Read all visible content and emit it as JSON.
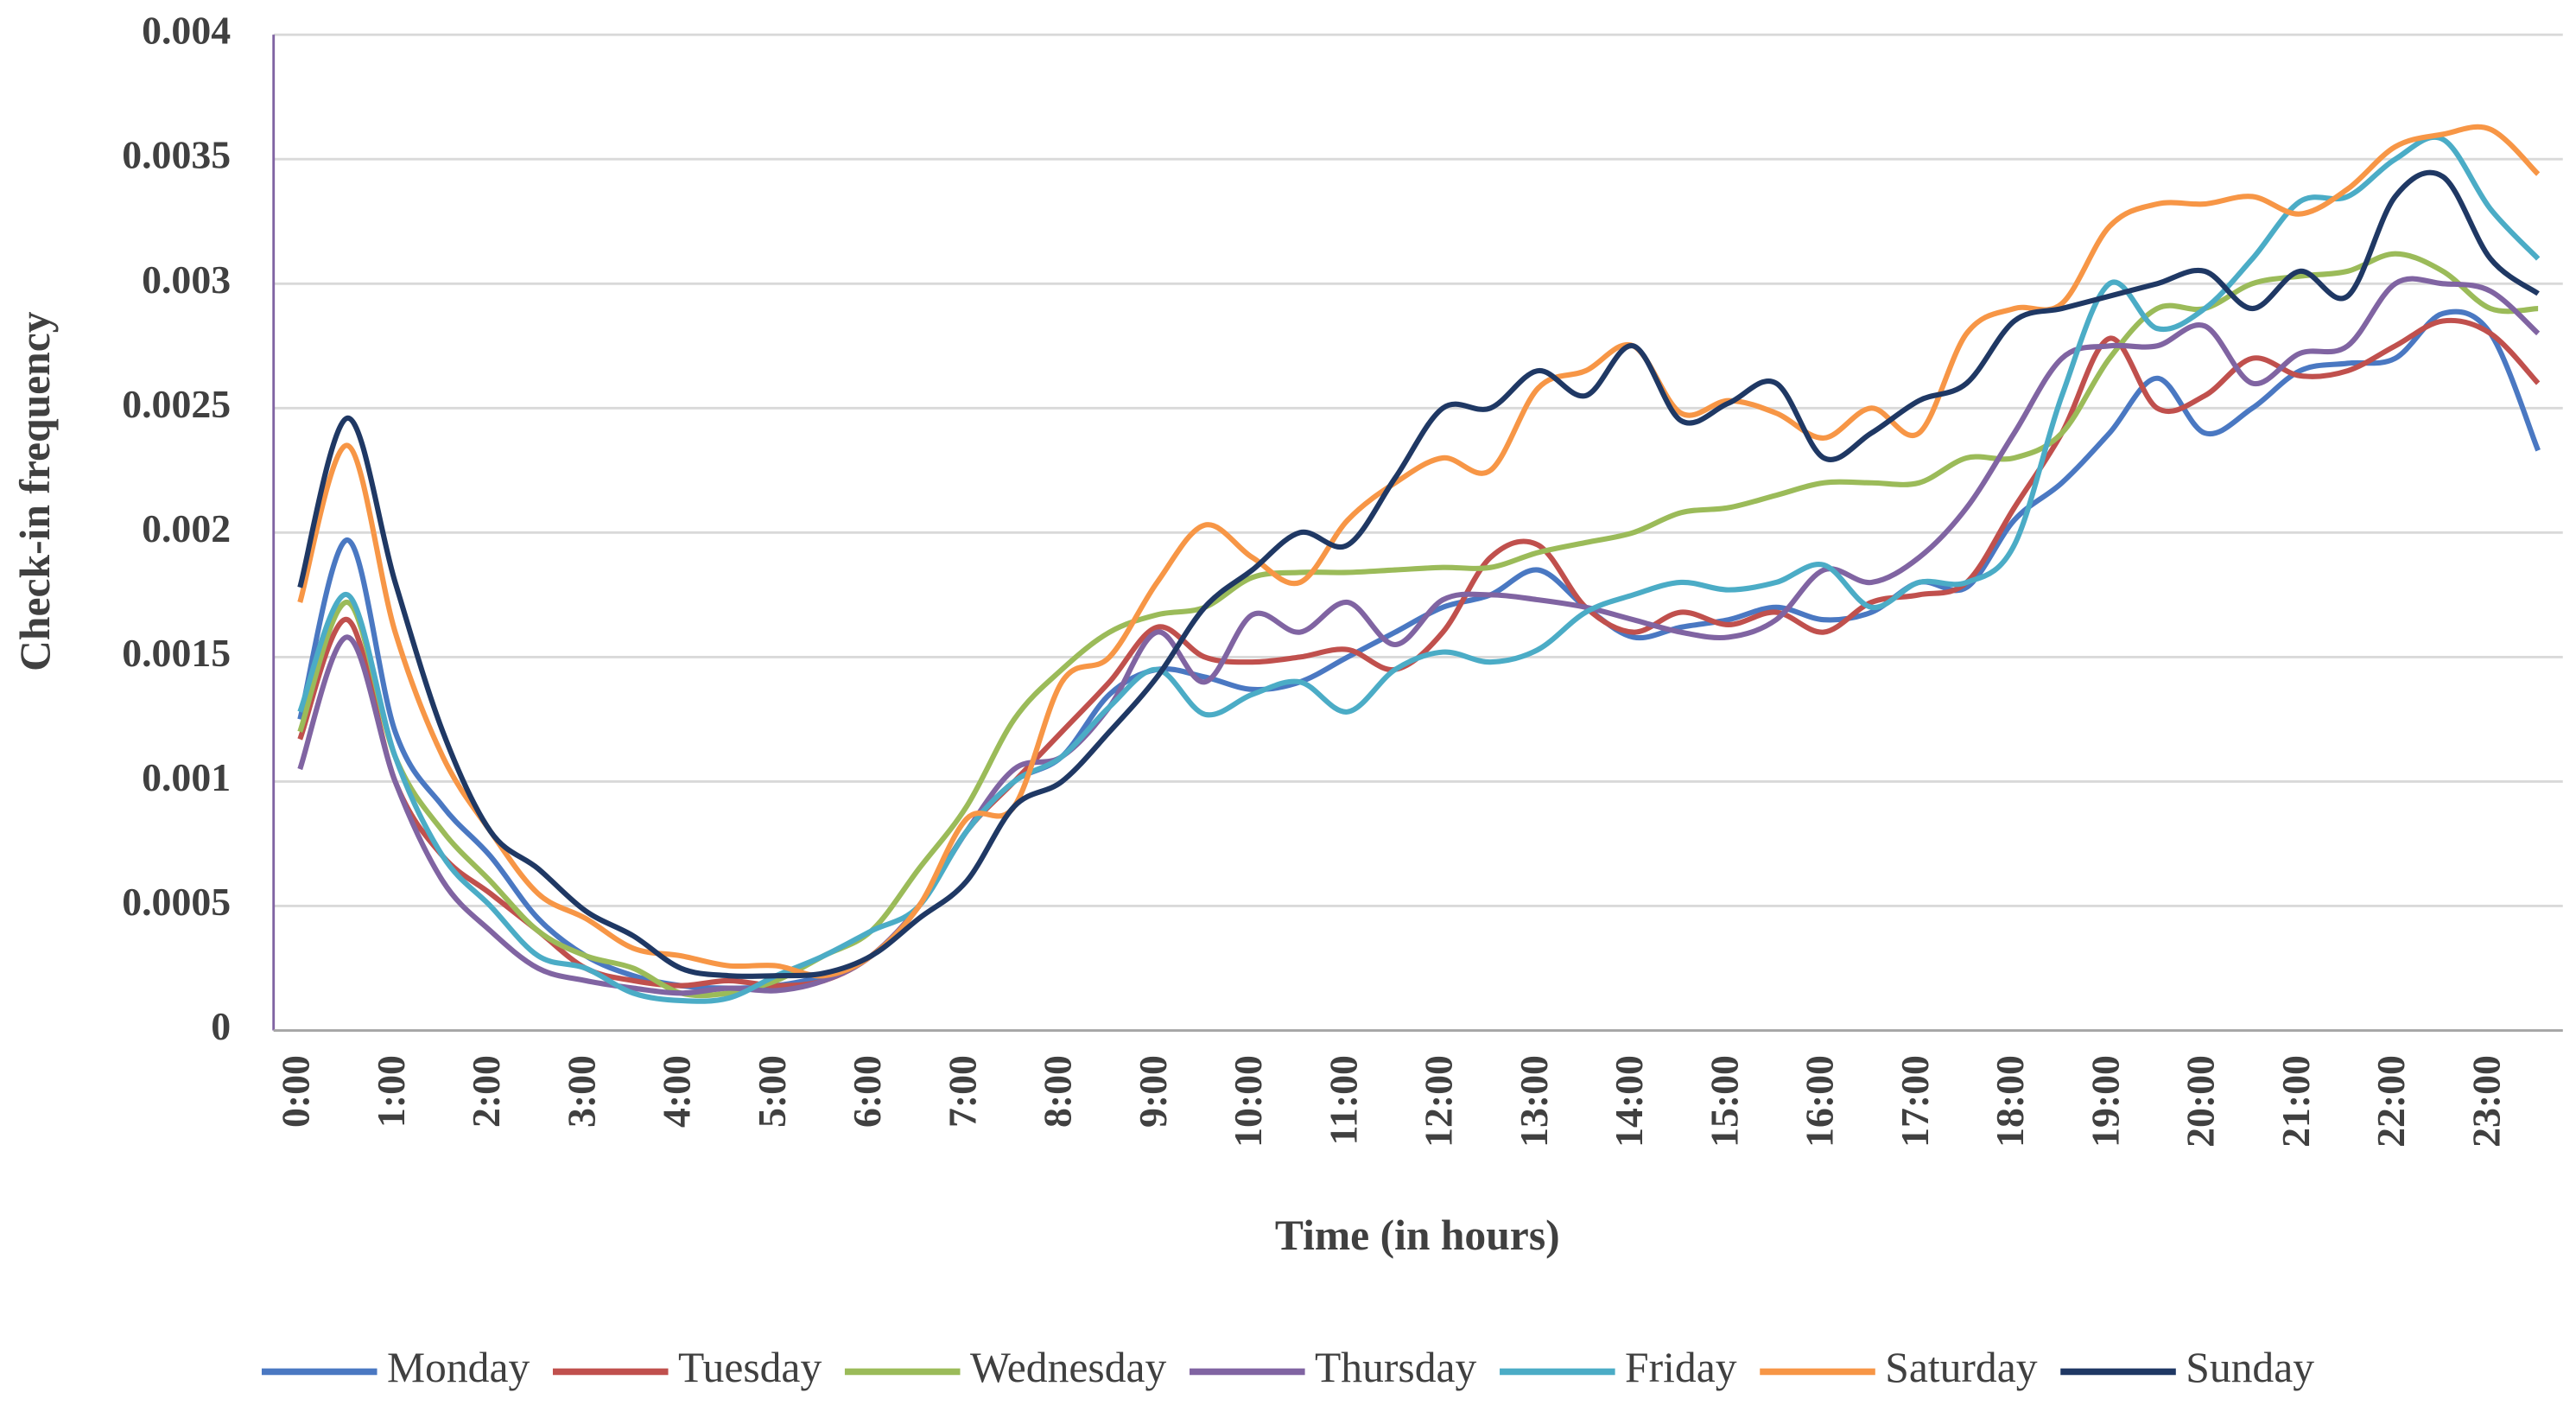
{
  "chart_data": {
    "type": "line",
    "x_label": "Time (in hours)",
    "y_label": "Check-in frequency",
    "categories": [
      "0:00",
      null,
      "1:00",
      null,
      "2:00",
      null,
      "3:00",
      null,
      "4:00",
      null,
      "5:00",
      null,
      "6:00",
      null,
      "7:00",
      null,
      "8:00",
      null,
      "9:00",
      null,
      "10:00",
      null,
      "11:00",
      null,
      "12:00",
      null,
      "13:00",
      null,
      "14:00",
      null,
      "15:00",
      null,
      "16:00",
      null,
      "17:00",
      null,
      "18:00",
      null,
      "19:00",
      null,
      "20:00",
      null,
      "21:00",
      null,
      "22:00",
      null,
      "23:00",
      null
    ],
    "ylim": [
      0,
      0.004
    ],
    "yticks": [
      0,
      0.0005,
      0.001,
      0.0015,
      0.002,
      0.0025,
      0.003,
      0.0035,
      0.004
    ],
    "grid": true,
    "smooth": true,
    "legend": "bottom",
    "series": [
      {
        "name": "Monday",
        "color": "#4a78c2",
        "values": [
          0.00125,
          0.00197,
          0.0012,
          0.0009,
          0.0007,
          0.00045,
          0.0003,
          0.00022,
          0.00018,
          0.00017,
          0.00018,
          0.00022,
          0.0003,
          0.0005,
          0.0008,
          0.001,
          0.0011,
          0.00135,
          0.00145,
          0.00142,
          0.00137,
          0.0014,
          0.0015,
          0.0016,
          0.0017,
          0.00175,
          0.00185,
          0.0017,
          0.00158,
          0.00162,
          0.00165,
          0.0017,
          0.00165,
          0.00168,
          0.0018,
          0.00178,
          0.00205,
          0.0022,
          0.0024,
          0.00262,
          0.0024,
          0.0025,
          0.00265,
          0.00268,
          0.0027,
          0.00288,
          0.0028,
          0.00233
        ]
      },
      {
        "name": "Tuesday",
        "color": "#c0504d",
        "values": [
          0.00117,
          0.00165,
          0.001,
          0.0007,
          0.00055,
          0.0004,
          0.00025,
          0.0002,
          0.00018,
          0.0002,
          0.00018,
          0.0002,
          0.0003,
          0.0005,
          0.0008,
          0.001,
          0.0012,
          0.0014,
          0.00162,
          0.0015,
          0.00148,
          0.0015,
          0.00153,
          0.00145,
          0.0016,
          0.0019,
          0.00195,
          0.0017,
          0.0016,
          0.00168,
          0.00163,
          0.00168,
          0.0016,
          0.00172,
          0.00175,
          0.0018,
          0.0021,
          0.0024,
          0.00278,
          0.0025,
          0.00255,
          0.0027,
          0.00263,
          0.00265,
          0.00275,
          0.00285,
          0.0028,
          0.0026
        ]
      },
      {
        "name": "Wednesday",
        "color": "#9bbb59",
        "values": [
          0.0012,
          0.00172,
          0.0011,
          0.0008,
          0.0006,
          0.0004,
          0.0003,
          0.00025,
          0.00015,
          0.00015,
          0.0002,
          0.0003,
          0.0004,
          0.00065,
          0.0009,
          0.00125,
          0.00145,
          0.0016,
          0.00167,
          0.0017,
          0.00182,
          0.00184,
          0.00184,
          0.00185,
          0.00186,
          0.00186,
          0.00192,
          0.00196,
          0.002,
          0.00208,
          0.0021,
          0.00215,
          0.0022,
          0.0022,
          0.0022,
          0.0023,
          0.0023,
          0.0024,
          0.0027,
          0.0029,
          0.0029,
          0.003,
          0.00303,
          0.00305,
          0.00312,
          0.00305,
          0.0029,
          0.0029
        ]
      },
      {
        "name": "Thursday",
        "color": "#8064a2",
        "values": [
          0.00105,
          0.00158,
          0.001,
          0.0006,
          0.0004,
          0.00025,
          0.0002,
          0.00017,
          0.00015,
          0.00017,
          0.00016,
          0.0002,
          0.0003,
          0.0005,
          0.0008,
          0.00105,
          0.0011,
          0.0013,
          0.0016,
          0.0014,
          0.00167,
          0.0016,
          0.00172,
          0.00155,
          0.00173,
          0.00175,
          0.00173,
          0.0017,
          0.00165,
          0.0016,
          0.00158,
          0.00165,
          0.00185,
          0.0018,
          0.0019,
          0.0021,
          0.0024,
          0.0027,
          0.00275,
          0.00275,
          0.00283,
          0.0026,
          0.00272,
          0.00275,
          0.003,
          0.003,
          0.00297,
          0.0028
        ]
      },
      {
        "name": "Friday",
        "color": "#4bacc6",
        "values": [
          0.00128,
          0.00175,
          0.0011,
          0.0007,
          0.0005,
          0.0003,
          0.00025,
          0.00015,
          0.00012,
          0.00013,
          0.00022,
          0.0003,
          0.0004,
          0.0005,
          0.0008,
          0.001,
          0.0011,
          0.0013,
          0.00145,
          0.00127,
          0.00135,
          0.0014,
          0.00128,
          0.00145,
          0.00152,
          0.00148,
          0.00153,
          0.00168,
          0.00175,
          0.0018,
          0.00177,
          0.0018,
          0.00187,
          0.0017,
          0.0018,
          0.0018,
          0.00195,
          0.00255,
          0.003,
          0.00282,
          0.0029,
          0.0031,
          0.00333,
          0.00335,
          0.0035,
          0.00358,
          0.0033,
          0.0031
        ]
      },
      {
        "name": "Saturday",
        "color": "#f79646",
        "values": [
          0.00172,
          0.00235,
          0.0016,
          0.0011,
          0.0008,
          0.00055,
          0.00045,
          0.00033,
          0.0003,
          0.00026,
          0.00026,
          0.00022,
          0.0003,
          0.0005,
          0.00085,
          0.0009,
          0.0014,
          0.0015,
          0.0018,
          0.00203,
          0.0019,
          0.0018,
          0.00205,
          0.0022,
          0.0023,
          0.00225,
          0.00258,
          0.00265,
          0.00275,
          0.00248,
          0.00253,
          0.00248,
          0.00238,
          0.0025,
          0.0024,
          0.0028,
          0.0029,
          0.00292,
          0.00323,
          0.00332,
          0.00332,
          0.00335,
          0.00328,
          0.00338,
          0.00355,
          0.0036,
          0.00362,
          0.00344
        ]
      },
      {
        "name": "Sunday",
        "color": "#1f3864",
        "values": [
          0.00178,
          0.00246,
          0.0018,
          0.0012,
          0.0008,
          0.00065,
          0.00048,
          0.00038,
          0.00025,
          0.00022,
          0.00022,
          0.00023,
          0.0003,
          0.00045,
          0.0006,
          0.0009,
          0.001,
          0.0012,
          0.00142,
          0.0017,
          0.00185,
          0.002,
          0.00195,
          0.00222,
          0.0025,
          0.0025,
          0.00265,
          0.00255,
          0.00275,
          0.00245,
          0.00252,
          0.0026,
          0.0023,
          0.0024,
          0.00253,
          0.0026,
          0.00285,
          0.0029,
          0.00295,
          0.003,
          0.00305,
          0.0029,
          0.00305,
          0.00295,
          0.00335,
          0.00343,
          0.0031,
          0.00296
        ]
      }
    ]
  }
}
